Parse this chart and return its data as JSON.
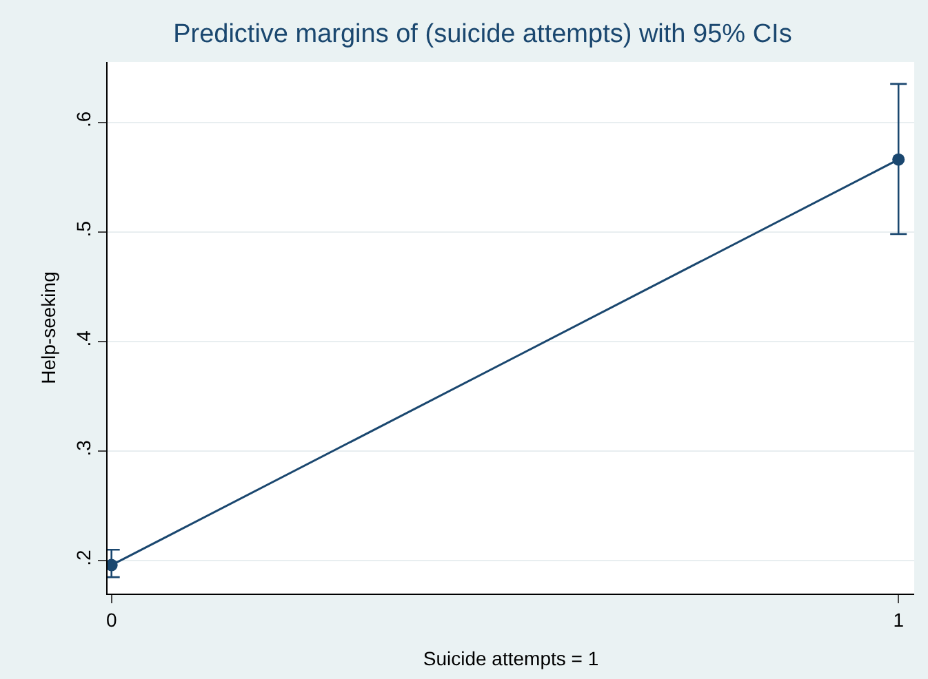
{
  "chart_data": {
    "type": "line",
    "title": "Predictive margins of (suicide attempts) with 95% CIs",
    "xlabel": "Suicide attempts = 1",
    "ylabel": "Help-seeking",
    "x": [
      0,
      1
    ],
    "series": [
      {
        "color": "#1a476f",
        "values": [
          0.196,
          0.566
        ],
        "errors": [
          [
            0.185,
            0.21
          ],
          [
            0.498,
            0.635
          ]
        ]
      }
    ],
    "xlim": [
      -0.005,
      1.02
    ],
    "xticks": [
      0,
      1
    ],
    "ylim": [
      0.17,
      0.655
    ],
    "yticks": [
      {
        "value": 0.2,
        "label": ".2"
      },
      {
        "value": 0.3,
        "label": ".3"
      },
      {
        "value": 0.4,
        "label": ".4"
      },
      {
        "value": 0.5,
        "label": ".5"
      },
      {
        "value": 0.6,
        "label": ".6"
      }
    ],
    "grid": "y",
    "marker": "circle",
    "line_style": "solid"
  }
}
